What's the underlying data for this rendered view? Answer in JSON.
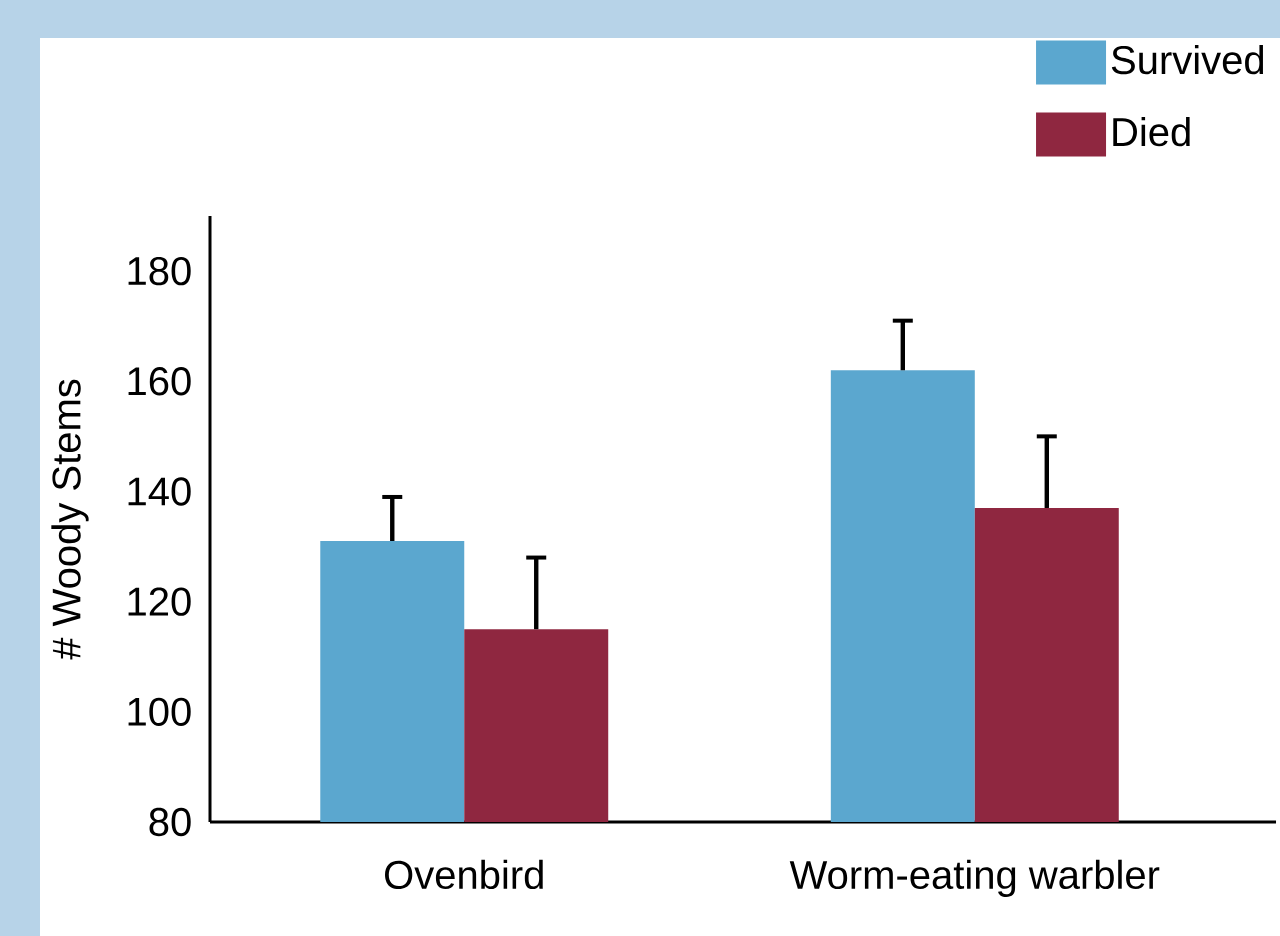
{
  "chart_data": {
    "type": "bar",
    "ylabel": "# Woody Stems",
    "categories": [
      "Ovenbird",
      "Worm-eating warbler"
    ],
    "series": [
      {
        "name": "Survived",
        "color": "#5ba7cf",
        "values": [
          131,
          162
        ],
        "errors": [
          [
            131,
            139
          ],
          [
            162,
            171
          ]
        ]
      },
      {
        "name": "Died",
        "color": "#8f2740",
        "values": [
          115,
          137
        ],
        "errors": [
          [
            115,
            128
          ],
          [
            137,
            150
          ]
        ]
      }
    ],
    "ylim": [
      80,
      190
    ],
    "yticks": [
      80,
      100,
      120,
      140,
      160,
      180
    ],
    "grid": false,
    "legend": "top right"
  }
}
